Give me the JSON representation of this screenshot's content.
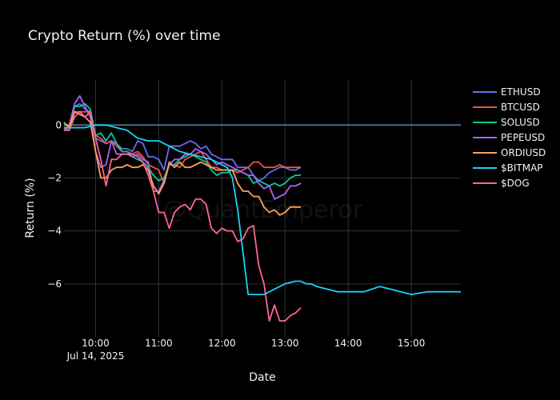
{
  "chart_data": {
    "type": "line",
    "title": "Crypto Return (%) over time",
    "xlabel": "Date",
    "ylabel": "Return (%)",
    "watermark": "@QuantEmperor",
    "x_start_minutes": 570,
    "x_range_minutes": [
      570,
      947
    ],
    "ylim": [
      -8.0,
      1.7
    ],
    "x_ticks": [
      {
        "m": 600,
        "label": "10:00",
        "sublabel": "Jul 14, 2025"
      },
      {
        "m": 660,
        "label": "11:00",
        "sublabel": ""
      },
      {
        "m": 720,
        "label": "12:00",
        "sublabel": ""
      },
      {
        "m": 780,
        "label": "13:00",
        "sublabel": ""
      },
      {
        "m": 840,
        "label": "14:00",
        "sublabel": ""
      },
      {
        "m": 900,
        "label": "15:00",
        "sublabel": ""
      }
    ],
    "y_ticks": [
      0,
      -2,
      -4,
      -6
    ],
    "grid": true,
    "legend_position": "right",
    "series": [
      {
        "name": "ETHUSD",
        "color": "#636efa",
        "step": 5,
        "values": [
          -0.1,
          -0.1,
          0.7,
          0.8,
          0.6,
          0.5,
          -0.5,
          -0.6,
          -0.7,
          -0.6,
          -0.7,
          -0.9,
          -0.9,
          -1.0,
          -0.6,
          -0.7,
          -1.2,
          -1.2,
          -1.3,
          -1.7,
          -0.8,
          -0.8,
          -0.8,
          -0.7,
          -0.6,
          -0.7,
          -0.9,
          -0.8,
          -1.1,
          -1.2,
          -1.3,
          -1.3,
          -1.3,
          -1.6,
          -1.6,
          -1.6,
          -1.9,
          -2.1,
          -2.0,
          -1.8,
          -1.7,
          -1.6,
          -1.6,
          -1.7,
          -1.7,
          -1.6
        ]
      },
      {
        "name": "BTCUSD",
        "color": "#ef553b",
        "step": 5,
        "values": [
          -0.1,
          -0.2,
          0.5,
          0.5,
          0.5,
          0.5,
          -0.4,
          -0.5,
          -0.7,
          -0.6,
          -0.8,
          -1.0,
          -1.0,
          -1.1,
          -1.0,
          -1.2,
          -1.5,
          -1.6,
          -1.7,
          -2.2,
          -1.5,
          -1.5,
          -1.6,
          -1.3,
          -1.2,
          -1.1,
          -1.0,
          -1.3,
          -1.6,
          -1.6,
          -1.7,
          -1.7,
          -1.7,
          -1.8,
          -1.7,
          -1.6,
          -1.4,
          -1.4,
          -1.6,
          -1.6,
          -1.6,
          -1.5,
          -1.6,
          -1.6,
          -1.6,
          -1.6
        ]
      },
      {
        "name": "SOLUSD",
        "color": "#00cc96",
        "step": 5,
        "values": [
          0.0,
          0.0,
          0.7,
          0.7,
          0.8,
          0.6,
          -0.4,
          -0.3,
          -0.6,
          -0.3,
          -0.7,
          -1.0,
          -1.0,
          -1.2,
          -1.3,
          -1.4,
          -1.6,
          -1.9,
          -2.1,
          -2.0,
          -1.5,
          -1.5,
          -1.3,
          -1.2,
          -1.1,
          -1.2,
          -1.3,
          -1.4,
          -1.7,
          -1.9,
          -1.8,
          -1.8,
          -1.7,
          -1.7,
          -1.8,
          -1.9,
          -2.2,
          -2.1,
          -2.2,
          -2.3,
          -2.2,
          -2.3,
          -2.2,
          -2.0,
          -1.9,
          -1.9
        ]
      },
      {
        "name": "PEPEUSD",
        "color": "#ab63fa",
        "step": 5,
        "values": [
          -0.2,
          0.0,
          0.8,
          1.1,
          0.7,
          0.3,
          -1.0,
          -1.6,
          -1.5,
          -0.6,
          -1.1,
          -1.1,
          -1.1,
          -1.2,
          -1.1,
          -1.3,
          -1.4,
          -2.5,
          -2.5,
          -2.1,
          -1.5,
          -1.3,
          -1.3,
          -1.1,
          -1.1,
          -0.9,
          -1.0,
          -1.1,
          -1.3,
          -1.5,
          -1.4,
          -1.5,
          -1.6,
          -1.7,
          -1.8,
          -1.9,
          -1.9,
          -2.2,
          -2.4,
          -2.3,
          -2.8,
          -2.7,
          -2.6,
          -2.3,
          -2.3,
          -2.2
        ]
      },
      {
        "name": "ORDIUSD",
        "color": "#ffa15a",
        "step": 5,
        "values": [
          0.1,
          -0.1,
          0.5,
          0.4,
          0.3,
          0.1,
          -1.0,
          -2.0,
          -2.0,
          -1.7,
          -1.6,
          -1.6,
          -1.5,
          -1.6,
          -1.6,
          -1.5,
          -1.7,
          -2.3,
          -2.6,
          -2.2,
          -1.4,
          -1.6,
          -1.4,
          -1.6,
          -1.6,
          -1.5,
          -1.4,
          -1.5,
          -1.6,
          -1.7,
          -1.7,
          -1.7,
          -1.7,
          -2.2,
          -2.5,
          -2.5,
          -2.7,
          -2.7,
          -3.1,
          -3.3,
          -3.2,
          -3.4,
          -3.3,
          -3.1,
          -3.1,
          -3.1
        ]
      },
      {
        "name": "$BITMAP",
        "color": "#19d3f3",
        "points": [
          [
            570,
            -0.1
          ],
          [
            580,
            -0.1
          ],
          [
            590,
            -0.1
          ],
          [
            600,
            0.0
          ],
          [
            610,
            0.0
          ],
          [
            620,
            -0.1
          ],
          [
            630,
            -0.2
          ],
          [
            640,
            -0.5
          ],
          [
            650,
            -0.6
          ],
          [
            660,
            -0.6
          ],
          [
            670,
            -0.8
          ],
          [
            680,
            -1.0
          ],
          [
            690,
            -1.1
          ],
          [
            700,
            -1.2
          ],
          [
            710,
            -1.3
          ],
          [
            720,
            -1.5
          ],
          [
            725,
            -1.6
          ],
          [
            730,
            -2.0
          ],
          [
            735,
            -3.2
          ],
          [
            740,
            -4.8
          ],
          [
            745,
            -6.4
          ],
          [
            760,
            -6.4
          ],
          [
            775,
            -6.1
          ],
          [
            780,
            -6.0
          ],
          [
            790,
            -5.9
          ],
          [
            795,
            -5.9
          ],
          [
            800,
            -6.0
          ],
          [
            805,
            -6.0
          ],
          [
            810,
            -6.1
          ],
          [
            820,
            -6.2
          ],
          [
            830,
            -6.3
          ],
          [
            840,
            -6.3
          ],
          [
            855,
            -6.3
          ],
          [
            870,
            -6.1
          ],
          [
            880,
            -6.2
          ],
          [
            890,
            -6.3
          ],
          [
            900,
            -6.4
          ],
          [
            915,
            -6.3
          ],
          [
            930,
            -6.3
          ],
          [
            947,
            -6.3
          ]
        ]
      },
      {
        "name": "$DOG",
        "color": "#ff6692",
        "step": 5,
        "values": [
          -0.2,
          -0.2,
          0.3,
          0.5,
          0.3,
          0.5,
          -0.5,
          -1.3,
          -2.3,
          -1.3,
          -1.3,
          -1.1,
          -1.1,
          -1.1,
          -1.2,
          -1.4,
          -1.9,
          -2.5,
          -3.3,
          -3.3,
          -3.9,
          -3.3,
          -3.1,
          -3.0,
          -3.2,
          -2.8,
          -2.8,
          -3.0,
          -3.9,
          -4.1,
          -3.9,
          -4.0,
          -4.0,
          -4.4,
          -4.3,
          -3.9,
          -3.8,
          -5.3,
          -6.0,
          -7.4,
          -6.8,
          -7.4,
          -7.4,
          -7.2,
          -7.1,
          -6.9
        ]
      }
    ]
  }
}
